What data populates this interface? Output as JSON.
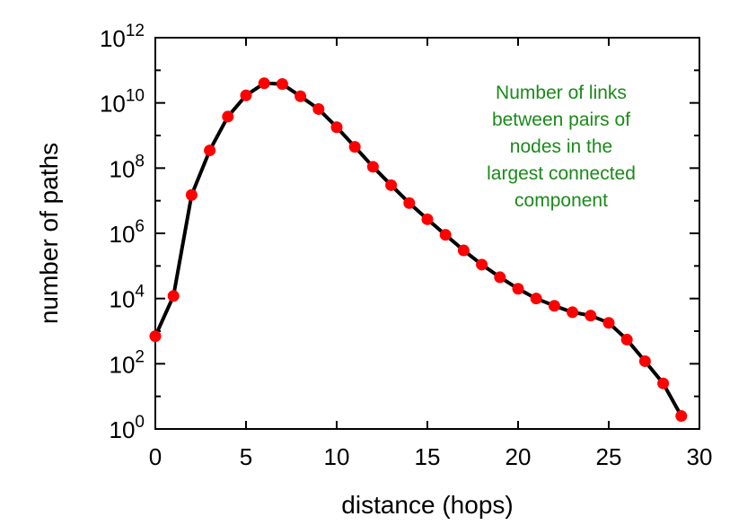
{
  "chart_data": {
    "type": "line",
    "title": "",
    "xlabel": "distance (hops)",
    "ylabel": "number of paths",
    "x_scale": "linear",
    "y_scale": "log",
    "xlim": [
      0,
      30
    ],
    "ylim": [
      1,
      1000000000000.0
    ],
    "x_ticks": [
      {
        "value": 0,
        "label": "0"
      },
      {
        "value": 5,
        "label": "5"
      },
      {
        "value": 10,
        "label": "10"
      },
      {
        "value": 15,
        "label": "15"
      },
      {
        "value": 20,
        "label": "20"
      },
      {
        "value": 25,
        "label": "25"
      },
      {
        "value": 30,
        "label": "30"
      }
    ],
    "y_ticks": [
      {
        "value": 1,
        "base": "10",
        "exp": "0"
      },
      {
        "value": 100,
        "base": "10",
        "exp": "2"
      },
      {
        "value": 10000,
        "base": "10",
        "exp": "4"
      },
      {
        "value": 1000000,
        "base": "10",
        "exp": "6"
      },
      {
        "value": 100000000,
        "base": "10",
        "exp": "8"
      },
      {
        "value": 10000000000,
        "base": "10",
        "exp": "10"
      },
      {
        "value": 1000000000000,
        "base": "10",
        "exp": "12"
      }
    ],
    "grid": false,
    "annotation": [
      "Number of links",
      "between pairs of",
      "nodes in the",
      "largest connected",
      "component"
    ],
    "series": [
      {
        "x": [
          0,
          1,
          2,
          3,
          4,
          5,
          6,
          7,
          8,
          9,
          10,
          11,
          12,
          13,
          14,
          15,
          16,
          17,
          18,
          19,
          20,
          21,
          22,
          23,
          24,
          25,
          26,
          27,
          28,
          29
        ],
        "y": [
          700,
          12000,
          15000000.0,
          350000000.0,
          3800000000.0,
          17000000000.0,
          40000000000.0,
          38000000000.0,
          16000000000.0,
          6500000000.0,
          1800000000.0,
          450000000.0,
          110000000.0,
          30000000.0,
          8500000.0,
          2700000.0,
          900000.0,
          300000.0,
          110000.0,
          45000.0,
          20000.0,
          10000.0,
          6000.0,
          3800.0,
          3000.0,
          1800.0,
          550,
          120,
          25,
          2.5
        ],
        "line_color": "#000000",
        "marker_color": "#ff0000"
      }
    ]
  }
}
